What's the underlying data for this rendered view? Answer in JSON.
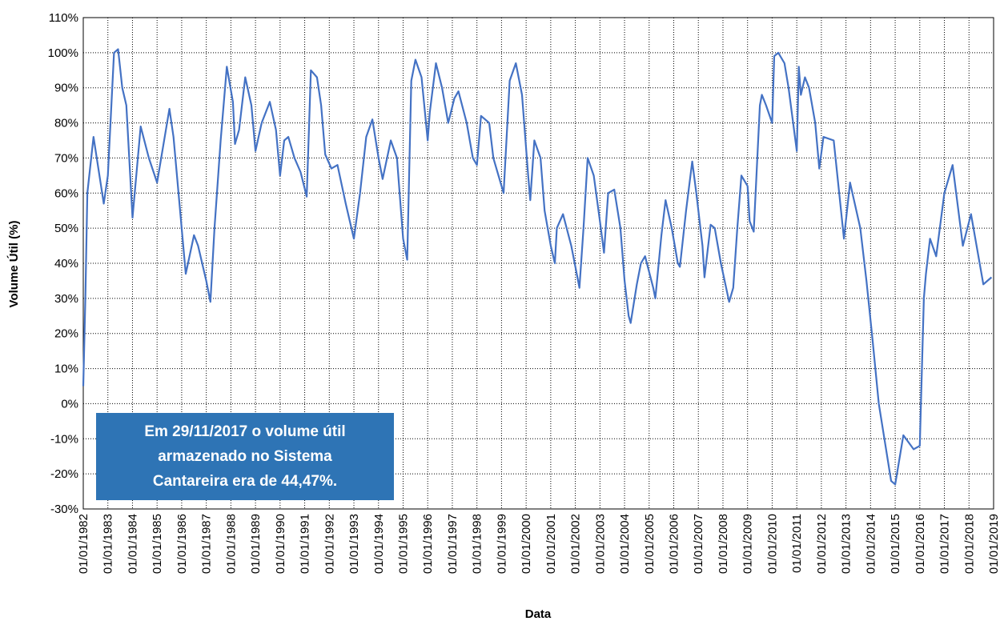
{
  "chart_data": {
    "type": "line",
    "ylabel": "Volume Útil (%)",
    "xlabel": "Data",
    "annotation": [
      "Em 29/11/2017 o volume útil",
      "armazenado no Sistema",
      "Cantareira era de 44,47%."
    ],
    "annotation_color": "#2e74b5",
    "grid": true,
    "ylim": [
      -30,
      110
    ],
    "yticks": [
      {
        "value": -30,
        "label": "-30%"
      },
      {
        "value": -20,
        "label": "-20%"
      },
      {
        "value": -10,
        "label": "-10%"
      },
      {
        "value": 0,
        "label": "0%"
      },
      {
        "value": 10,
        "label": "10%"
      },
      {
        "value": 20,
        "label": "20%"
      },
      {
        "value": 30,
        "label": "30%"
      },
      {
        "value": 40,
        "label": "40%"
      },
      {
        "value": 50,
        "label": "50%"
      },
      {
        "value": 60,
        "label": "60%"
      },
      {
        "value": 70,
        "label": "70%"
      },
      {
        "value": 80,
        "label": "80%"
      },
      {
        "value": 90,
        "label": "90%"
      },
      {
        "value": 100,
        "label": "100%"
      },
      {
        "value": 110,
        "label": "110%"
      }
    ],
    "xlim": [
      "01/01/1982",
      "01/01/2019"
    ],
    "xticks": [
      "01/01/1982",
      "01/01/1983",
      "01/01/1984",
      "01/01/1985",
      "01/01/1986",
      "01/01/1987",
      "01/01/1988",
      "01/01/1989",
      "01/01/1990",
      "01/01/1991",
      "01/01/1992",
      "01/01/1993",
      "01/01/1994",
      "01/01/1995",
      "01/01/1996",
      "01/01/1997",
      "01/01/1998",
      "01/01/1999",
      "01/01/2000",
      "01/01/2001",
      "01/01/2002",
      "01/01/2003",
      "01/01/2004",
      "01/01/2005",
      "01/01/2006",
      "01/01/2007",
      "01/01/2008",
      "01/01/2009",
      "01/01/2010",
      "01/01/2011",
      "01/01/2012",
      "01/01/2013",
      "01/01/2014",
      "01/01/2015",
      "01/01/2016",
      "01/01/2017",
      "01/01/2018",
      "01/01/2019"
    ],
    "x": [
      "01/01/1982",
      "01/02/1982",
      "01/03/1982",
      "01/06/1982",
      "01/11/1982",
      "01/01/1983",
      "01/04/1983",
      "01/06/1983",
      "01/08/1983",
      "01/10/1983",
      "01/01/1984",
      "01/05/1984",
      "01/09/1984",
      "01/01/1985",
      "01/07/1985",
      "01/09/1985",
      "01/01/1986",
      "01/03/1986",
      "01/07/1986",
      "01/09/1986",
      "01/01/1987",
      "01/03/1987",
      "01/05/1987",
      "01/08/1987",
      "01/11/1987",
      "01/02/1988",
      "01/03/1988",
      "01/05/1988",
      "01/08/1988",
      "01/11/1988",
      "01/01/1989",
      "01/04/1989",
      "01/08/1989",
      "01/11/1989",
      "01/01/1990",
      "01/03/1990",
      "01/05/1990",
      "01/08/1990",
      "01/11/1990",
      "01/02/1991",
      "01/04/1991",
      "01/07/1991",
      "01/09/1991",
      "01/11/1991",
      "01/02/1992",
      "01/05/1992",
      "01/09/1992",
      "01/01/1993",
      "01/04/1993",
      "01/07/1993",
      "01/10/1993",
      "01/01/1994",
      "01/03/1994",
      "01/07/1994",
      "01/10/1994",
      "01/01/1995",
      "01/03/1995",
      "01/05/1995",
      "01/07/1995",
      "01/10/1995",
      "01/01/1996",
      "01/02/1996",
      "01/05/1996",
      "01/08/1996",
      "01/11/1996",
      "01/02/1997",
      "01/04/1997",
      "01/08/1997",
      "01/11/1997",
      "01/01/1998",
      "01/03/1998",
      "01/07/1998",
      "01/09/1998",
      "01/02/1999",
      "01/05/1999",
      "01/08/1999",
      "01/11/1999",
      "01/02/2000",
      "01/03/2000",
      "01/05/2000",
      "01/08/2000",
      "01/10/2000",
      "01/01/2001",
      "01/03/2001",
      "01/04/2001",
      "01/07/2001",
      "01/11/2001",
      "01/02/2002",
      "01/03/2002",
      "01/05/2002",
      "01/07/2002",
      "01/10/2002",
      "01/01/2003",
      "01/03/2003",
      "01/05/2003",
      "01/08/2003",
      "01/11/2003",
      "01/01/2004",
      "01/03/2004",
      "01/04/2004",
      "01/07/2004",
      "01/09/2004",
      "01/11/2004",
      "01/03/2005",
      "01/04/2005",
      "01/07/2005",
      "01/09/2005",
      "01/12/2005",
      "01/03/2006",
      "01/04/2006",
      "01/07/2006",
      "01/10/2006",
      "01/12/2006",
      "01/03/2007",
      "01/04/2007",
      "01/07/2007",
      "01/09/2007",
      "01/12/2007",
      "01/04/2008",
      "01/06/2008",
      "01/08/2008",
      "01/10/2008",
      "01/01/2009",
      "01/02/2009",
      "01/04/2009",
      "01/07/2009",
      "01/08/2009",
      "01/10/2009",
      "01/01/2010",
      "01/02/2010",
      "01/04/2010",
      "01/07/2010",
      "01/09/2010",
      "01/01/2011",
      "01/02/2011",
      "01/03/2011",
      "01/05/2011",
      "01/07/2011",
      "01/10/2011",
      "01/12/2011",
      "01/02/2012",
      "01/07/2012",
      "01/12/2012",
      "01/03/2013",
      "01/08/2013",
      "01/11/2013",
      "01/02/2014",
      "01/05/2014",
      "01/11/2014",
      "01/01/2015",
      "01/05/2015",
      "01/10/2015",
      "01/01/2016",
      "01/03/2016",
      "01/04/2016",
      "01/06/2016",
      "01/09/2016",
      "01/01/2017",
      "01/05/2017",
      "01/10/2017",
      "01/02/2018",
      "01/08/2018",
      "01/12/2018"
    ],
    "series": [
      {
        "color": "#4472c4",
        "values": [
          5,
          30,
          60,
          76,
          57,
          65,
          100,
          101,
          90,
          85,
          53,
          79,
          70,
          63,
          84,
          76,
          50,
          37,
          48,
          45,
          35,
          29,
          50,
          75,
          96,
          86,
          74,
          78,
          93,
          85,
          72,
          80,
          86,
          78,
          65,
          75,
          76,
          70,
          66,
          59,
          95,
          93,
          85,
          71,
          67,
          68,
          57,
          47,
          60,
          76,
          81,
          70,
          64,
          75,
          70,
          47,
          41,
          92,
          98,
          93,
          75,
          83,
          97,
          90,
          80,
          87,
          89,
          80,
          70,
          68,
          82,
          80,
          70,
          60,
          92,
          97,
          88,
          65,
          58,
          75,
          70,
          55,
          45,
          40,
          50,
          54,
          45,
          36,
          33,
          50,
          70,
          65,
          52,
          43,
          60,
          61,
          50,
          35,
          25,
          23,
          34,
          40,
          42,
          33,
          30,
          48,
          58,
          50,
          40,
          39,
          55,
          69,
          60,
          45,
          36,
          51,
          50,
          40,
          29,
          33,
          50,
          65,
          62,
          52,
          49,
          85,
          88,
          85,
          80,
          99,
          100,
          97,
          90,
          72,
          96,
          88,
          93,
          90,
          80,
          67,
          76,
          75,
          47,
          63,
          50,
          35,
          18,
          0,
          -22,
          -23,
          -9,
          -13,
          -12,
          30,
          37,
          47,
          42,
          60,
          68,
          45,
          54,
          34,
          36
        ]
      }
    ]
  }
}
